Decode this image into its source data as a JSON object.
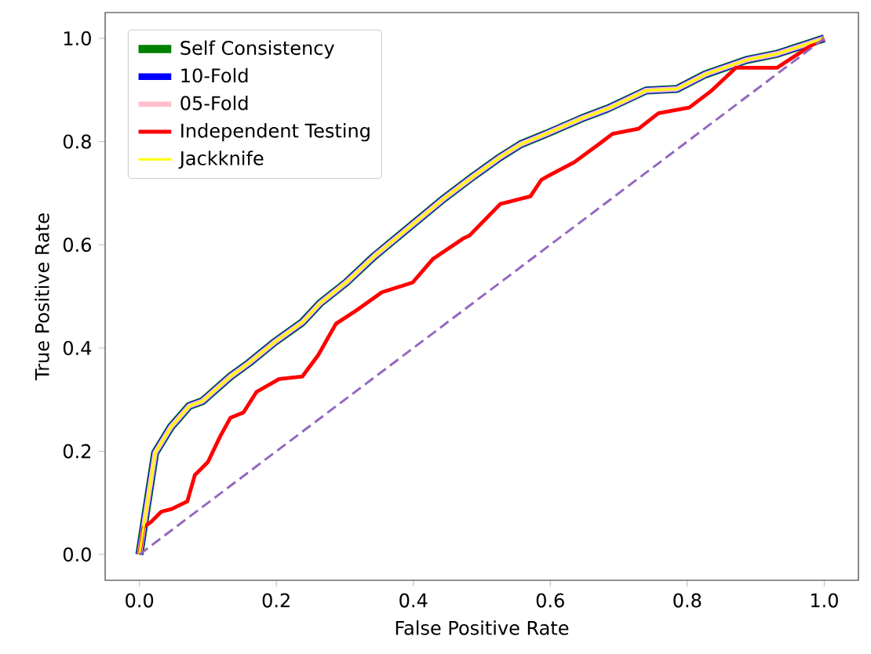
{
  "chart_data": {
    "type": "line",
    "xlabel": "False Positive Rate",
    "ylabel": "True Positive Rate",
    "xlim": [
      -0.05,
      1.05
    ],
    "ylim": [
      -0.05,
      1.05
    ],
    "xticks": [
      {
        "value": 0,
        "label": "0.0"
      },
      0.2,
      0.4,
      0.6,
      0.8,
      {
        "value": 1,
        "label": "1.0"
      }
    ],
    "yticks": [
      {
        "value": 0,
        "label": "0.0"
      },
      0.2,
      0.4,
      0.6,
      0.8,
      {
        "value": 1,
        "label": "1.0"
      }
    ],
    "legend": "top left",
    "grid": false,
    "line_style": "solid",
    "series": [
      {
        "name": "Self Consistency",
        "color": "#008000",
        "x": [
          0,
          0.023,
          0.046,
          0.073,
          0.092,
          0.133,
          0.16,
          0.197,
          0.238,
          0.264,
          0.302,
          0.343,
          0.384,
          0.444,
          0.489,
          0.527,
          0.557,
          0.594,
          0.646,
          0.684,
          0.74,
          0.785,
          0.826,
          0.886,
          0.931,
          1.0
        ],
        "values": [
          0,
          0.197,
          0.247,
          0.288,
          0.297,
          0.345,
          0.371,
          0.411,
          0.45,
          0.487,
          0.527,
          0.578,
          0.623,
          0.689,
          0.734,
          0.77,
          0.795,
          0.815,
          0.845,
          0.864,
          0.899,
          0.902,
          0.93,
          0.958,
          0.97,
          1.0
        ]
      },
      {
        "name": "10-Fold",
        "color": "#0000ff",
        "x": [
          0,
          0.023,
          0.046,
          0.073,
          0.092,
          0.133,
          0.16,
          0.197,
          0.238,
          0.264,
          0.302,
          0.343,
          0.384,
          0.444,
          0.489,
          0.527,
          0.557,
          0.594,
          0.646,
          0.684,
          0.74,
          0.785,
          0.826,
          0.886,
          0.931,
          1.0
        ],
        "values": [
          0,
          0.197,
          0.247,
          0.288,
          0.297,
          0.345,
          0.371,
          0.411,
          0.45,
          0.487,
          0.527,
          0.578,
          0.623,
          0.689,
          0.734,
          0.77,
          0.795,
          0.815,
          0.845,
          0.864,
          0.899,
          0.902,
          0.93,
          0.958,
          0.97,
          1.0
        ]
      },
      {
        "name": "05-Fold",
        "color": "#ffc0cb",
        "x": [
          0,
          0.023,
          0.046,
          0.073,
          0.092,
          0.133,
          0.16,
          0.197,
          0.238,
          0.264,
          0.302,
          0.343,
          0.384,
          0.444,
          0.489,
          0.527,
          0.557,
          0.594,
          0.646,
          0.684,
          0.74,
          0.785,
          0.826,
          0.886,
          0.931,
          1.0
        ],
        "values": [
          0,
          0.197,
          0.247,
          0.288,
          0.297,
          0.345,
          0.371,
          0.411,
          0.45,
          0.487,
          0.527,
          0.578,
          0.623,
          0.689,
          0.734,
          0.77,
          0.795,
          0.815,
          0.845,
          0.864,
          0.899,
          0.902,
          0.93,
          0.958,
          0.97,
          1.0
        ]
      },
      {
        "name": "Independent Testing",
        "color": "#ff0000",
        "x": [
          0,
          0.006,
          0.017,
          0.032,
          0.047,
          0.07,
          0.081,
          0.1,
          0.118,
          0.133,
          0.152,
          0.171,
          0.204,
          0.238,
          0.261,
          0.287,
          0.317,
          0.354,
          0.399,
          0.429,
          0.474,
          0.482,
          0.527,
          0.571,
          0.587,
          0.598,
          0.635,
          0.676,
          0.691,
          0.729,
          0.758,
          0.803,
          0.834,
          0.871,
          0.931,
          0.976,
          1.0
        ],
        "values": [
          0,
          0.053,
          0.063,
          0.083,
          0.088,
          0.103,
          0.154,
          0.179,
          0.229,
          0.265,
          0.275,
          0.315,
          0.34,
          0.345,
          0.386,
          0.447,
          0.473,
          0.508,
          0.527,
          0.573,
          0.613,
          0.618,
          0.679,
          0.694,
          0.726,
          0.734,
          0.76,
          0.8,
          0.815,
          0.825,
          0.855,
          0.866,
          0.897,
          0.943,
          0.943,
          0.982,
          1.0
        ]
      },
      {
        "name": "Jackknife",
        "color": "#ffff00",
        "x": [
          0,
          0.023,
          0.046,
          0.073,
          0.092,
          0.133,
          0.16,
          0.197,
          0.238,
          0.264,
          0.302,
          0.343,
          0.384,
          0.444,
          0.489,
          0.527,
          0.557,
          0.594,
          0.646,
          0.684,
          0.74,
          0.785,
          0.826,
          0.886,
          0.931,
          1.0
        ],
        "values": [
          0,
          0.197,
          0.247,
          0.288,
          0.297,
          0.345,
          0.371,
          0.411,
          0.45,
          0.487,
          0.527,
          0.578,
          0.623,
          0.689,
          0.734,
          0.77,
          0.795,
          0.815,
          0.845,
          0.864,
          0.899,
          0.902,
          0.93,
          0.958,
          0.97,
          1.0
        ]
      },
      {
        "color": "#9467bd",
        "line_style": "dashed",
        "x": [
          0,
          1
        ],
        "values": [
          0,
          1
        ]
      }
    ]
  }
}
